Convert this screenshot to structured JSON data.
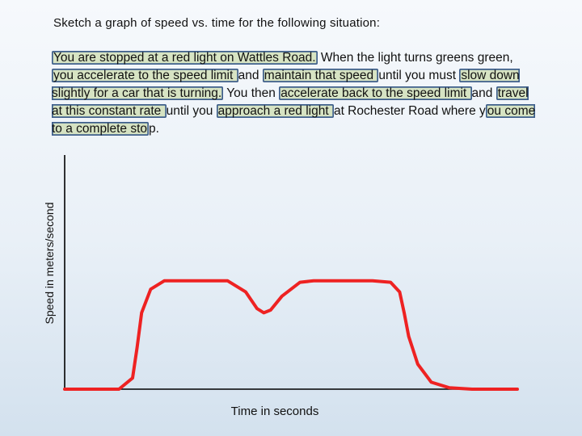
{
  "slide": {
    "title": "Sketch a graph of speed vs. time for the following situation:",
    "prompt_segments": [
      {
        "text": "You are stopped at a red light on Wattles Road.",
        "hl": true
      },
      {
        "text": "  When the light turns greens green, ",
        "hl": false
      },
      {
        "text": "you accelerate to the speed limit ",
        "hl": true
      },
      {
        "text": "and ",
        "hl": false
      },
      {
        "text": "maintain that speed ",
        "hl": true
      },
      {
        "text": "until you must ",
        "hl": false
      },
      {
        "text": "slow down slightly for a car that is turning.",
        "hl": true
      },
      {
        "text": "  You then ",
        "hl": false
      },
      {
        "text": "accelerate back to the speed limit ",
        "hl": true
      },
      {
        "text": "and ",
        "hl": false
      },
      {
        "text": "travel at this constant rate ",
        "hl": true
      },
      {
        "text": "until you ",
        "hl": false
      },
      {
        "text": "approach a red light ",
        "hl": true
      },
      {
        "text": "at Rochester Road where y",
        "hl": false
      },
      {
        "text": "ou come to a complete sto",
        "hl": true
      },
      {
        "text": "p.",
        "hl": false
      }
    ],
    "highlight_fill": "#b4c86e",
    "highlight_border": "#3e5f8c"
  },
  "chart_data": {
    "type": "line",
    "xlabel": "Time in seconds",
    "ylabel": "Speed in meters/second",
    "xlim": [
      0,
      100
    ],
    "ylim": [
      0,
      100
    ],
    "grid": false,
    "series": [
      {
        "color": "#ee2222",
        "x": [
          0,
          12,
          15,
          16,
          17,
          19,
          22,
          26,
          36,
          40,
          42.5,
          44,
          45.5,
          48,
          52,
          55,
          68,
          72,
          74,
          75,
          76,
          78,
          81,
          85,
          90,
          100
        ],
        "y": [
          0,
          0,
          8,
          30,
          55,
          72,
          78,
          78,
          78,
          70,
          58,
          55,
          57,
          67,
          77,
          78,
          78,
          77,
          70,
          55,
          38,
          18,
          5,
          1,
          0,
          0
        ]
      }
    ]
  }
}
